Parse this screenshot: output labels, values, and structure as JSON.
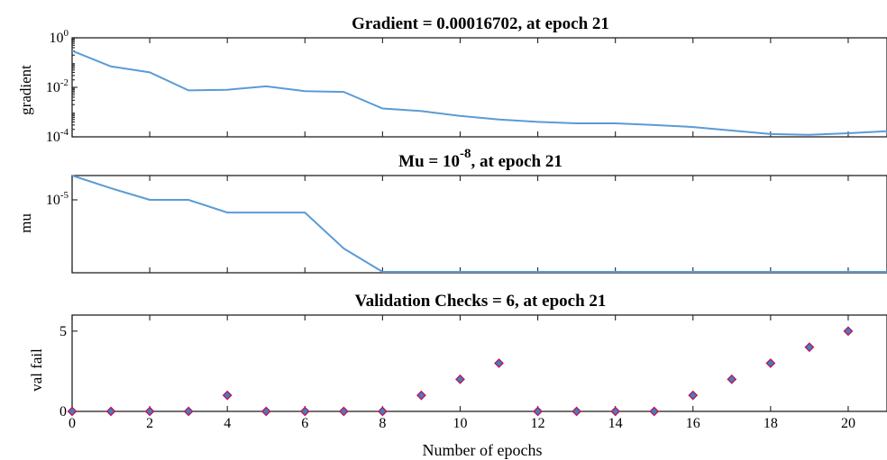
{
  "chart_data": [
    {
      "type": "line",
      "title": "Gradient = 0.00016702, at epoch 21",
      "ylabel": "gradient",
      "yscale": "log",
      "ylim": [
        0.0001,
        1
      ],
      "xlim": [
        0,
        21
      ],
      "ytick_labels": [
        {
          "base": "10",
          "exp": "0",
          "value": 1
        },
        {
          "base": "10",
          "exp": "-2",
          "value": 0.01
        },
        {
          "base": "10",
          "exp": "-4",
          "value": 0.0001
        }
      ],
      "x": [
        0,
        1,
        2,
        3,
        4,
        5,
        6,
        7,
        8,
        9,
        10,
        11,
        12,
        13,
        14,
        15,
        16,
        17,
        18,
        19,
        20,
        21
      ],
      "values": [
        0.3,
        0.07,
        0.04,
        0.0075,
        0.008,
        0.011,
        0.007,
        0.0065,
        0.0014,
        0.0011,
        0.0007,
        0.0005,
        0.0004,
        0.00035,
        0.00035,
        0.0003,
        0.00025,
        0.00018,
        0.00013,
        0.00012,
        0.00014,
        0.00017
      ]
    },
    {
      "type": "line",
      "title_main": "Mu = 10",
      "title_exp": "-8",
      "title_rest": ", at epoch 21",
      "ylabel": "mu",
      "yscale": "log",
      "ylim": [
        1e-08,
        0.0001
      ],
      "xlim": [
        0,
        21
      ],
      "ytick_labels": [
        {
          "base": "10",
          "exp": "-5",
          "value": 1e-05
        }
      ],
      "x": [
        0,
        1,
        2,
        3,
        4,
        5,
        6,
        7,
        8,
        9,
        10,
        11,
        12,
        13,
        14,
        15,
        16,
        17,
        18,
        19,
        20,
        21
      ],
      "values": [
        0.0001,
        3e-05,
        1e-05,
        1e-05,
        3e-06,
        3e-06,
        3e-06,
        1e-07,
        1e-08,
        1e-08,
        1e-08,
        1e-08,
        1e-08,
        1e-08,
        1e-08,
        1e-08,
        1e-08,
        1e-08,
        1e-08,
        1e-08,
        1e-08,
        1e-08
      ]
    },
    {
      "type": "scatter",
      "title": "Validation Checks = 6, at epoch 21",
      "ylabel": "val fail",
      "xlabel": "Number of epochs",
      "ylim": [
        0,
        6
      ],
      "xlim": [
        0,
        21
      ],
      "yticks": [
        0,
        5
      ],
      "xticks": [
        0,
        2,
        4,
        6,
        8,
        10,
        12,
        14,
        16,
        18,
        20
      ],
      "x": [
        0,
        1,
        2,
        3,
        4,
        5,
        6,
        7,
        8,
        9,
        10,
        11,
        12,
        13,
        14,
        15,
        16,
        17,
        18,
        19,
        20
      ],
      "values": [
        0,
        0,
        0,
        0,
        1,
        0,
        0,
        0,
        0,
        1,
        2,
        3,
        0,
        0,
        0,
        0,
        1,
        2,
        3,
        4,
        5
      ]
    }
  ]
}
